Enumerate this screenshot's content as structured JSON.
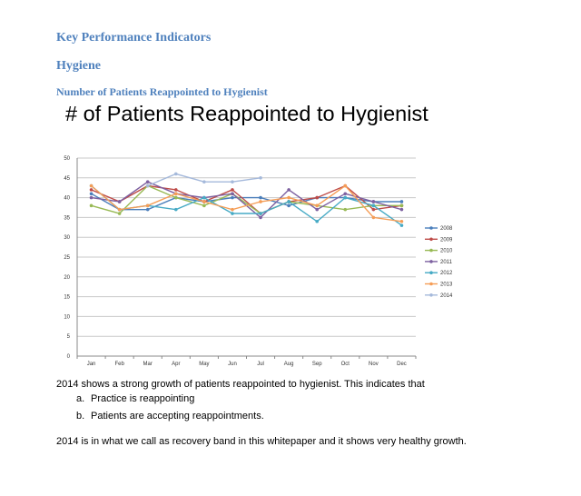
{
  "document": {
    "heading1": "Key Performance Indicators",
    "heading2": "Hygiene",
    "heading3": "Number of Patients Reappointed to Hygienist",
    "paragraph1": "2014 shows a strong growth of patients reappointed to hygienist.  This indicates that",
    "list_items": [
      {
        "marker": "a.",
        "text": "Practice is reappointing"
      },
      {
        "marker": "b.",
        "text": "Patients are accepting reappointments."
      }
    ],
    "paragraph2": "2014 is in what we call as recovery band in this whitepaper and it shows very healthy growth."
  },
  "chart_data": {
    "type": "line",
    "title": "# of Patients Reappointed to Hygienist",
    "xlabel": "",
    "ylabel": "",
    "categories": [
      "Jan",
      "Feb",
      "Mar",
      "Apr",
      "May",
      "Jun",
      "Jul",
      "Aug",
      "Sep",
      "Oct",
      "Nov",
      "Dec"
    ],
    "ylim": [
      0,
      50
    ],
    "yticks": [
      0,
      5,
      10,
      15,
      20,
      25,
      30,
      35,
      40,
      45,
      50
    ],
    "grid": true,
    "legend_position": "right",
    "series": [
      {
        "name": "2008",
        "color": "#4a7ebb",
        "values": [
          41,
          37,
          37,
          40,
          39,
          40,
          40,
          38,
          40,
          40,
          39,
          39
        ]
      },
      {
        "name": "2009",
        "color": "#be4b48",
        "values": [
          42,
          39,
          43,
          42,
          39,
          42,
          36,
          39,
          40,
          43,
          37,
          38
        ]
      },
      {
        "name": "2010",
        "color": "#98b954",
        "values": [
          38,
          36,
          43,
          40,
          38,
          41,
          36,
          39,
          38,
          37,
          38,
          38
        ]
      },
      {
        "name": "2011",
        "color": "#7d60a0",
        "values": [
          40,
          39,
          44,
          41,
          40,
          41,
          35,
          42,
          37,
          41,
          39,
          37
        ]
      },
      {
        "name": "2012",
        "color": "#46aac5",
        "values": [
          43,
          37,
          38,
          37,
          40,
          36,
          36,
          39,
          34,
          40,
          38,
          33
        ]
      },
      {
        "name": "2013",
        "color": "#f59d56",
        "values": [
          43,
          37,
          38,
          41,
          39,
          37,
          39,
          40,
          38,
          43,
          35,
          34
        ]
      },
      {
        "name": "2014",
        "color": "#a5b9db",
        "values": [
          null,
          null,
          43,
          46,
          44,
          44,
          45,
          null,
          null,
          null,
          null,
          null
        ]
      }
    ]
  }
}
